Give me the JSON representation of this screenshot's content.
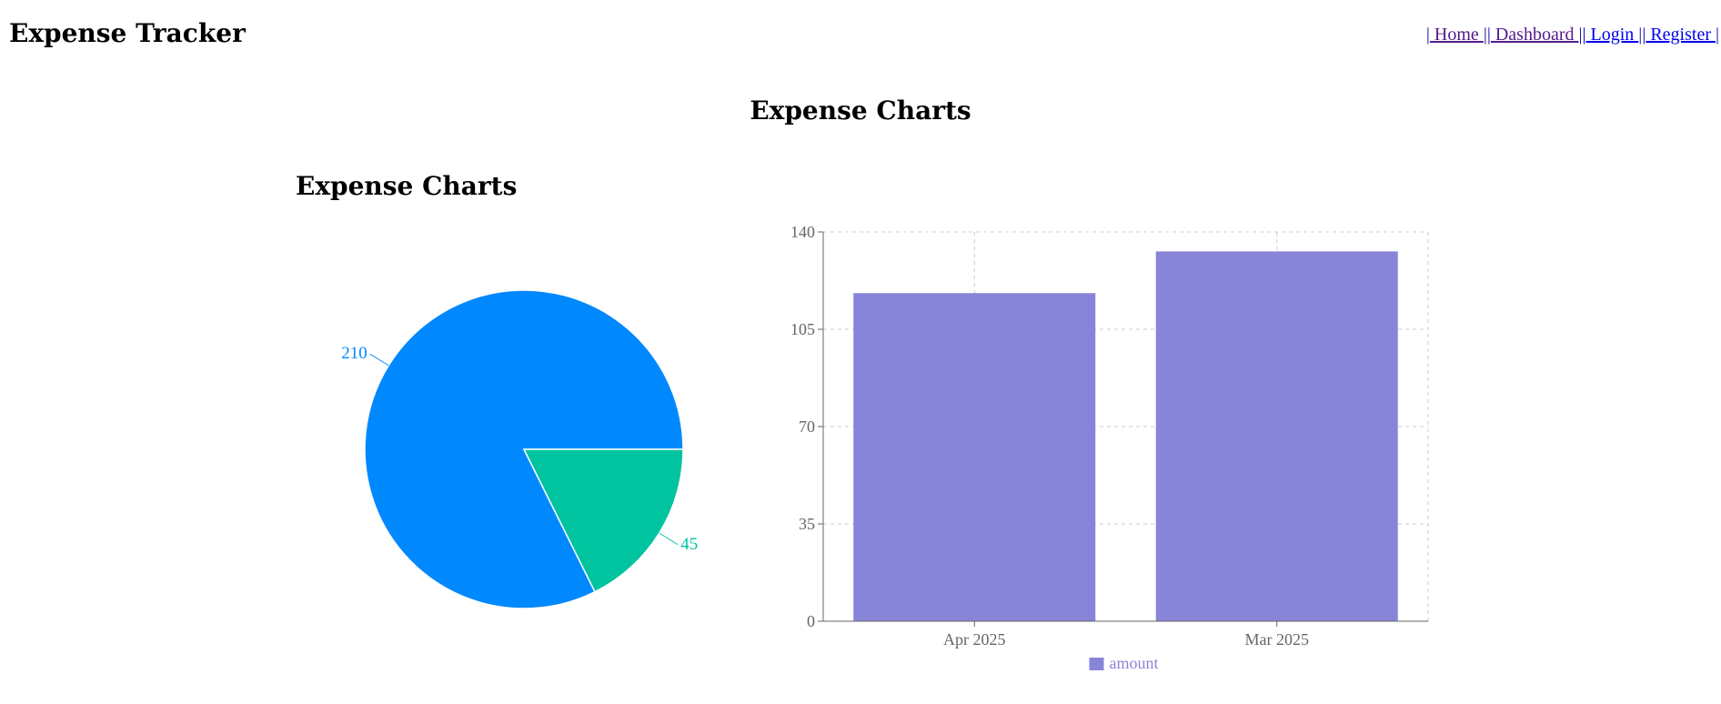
{
  "header": {
    "app_title": "Expense Tracker",
    "nav": [
      {
        "label": " Home ",
        "visited": true
      },
      {
        "label": " Dashboard ",
        "visited": true
      },
      {
        "label": " Login ",
        "visited": false
      },
      {
        "label": " Register ",
        "visited": false
      }
    ],
    "separator": "|"
  },
  "main": {
    "page_heading": "Expense Charts",
    "section_heading": "Expense Charts"
  },
  "chart_data": [
    {
      "type": "pie",
      "slices": [
        {
          "value": 210,
          "color": "#0088FE"
        },
        {
          "value": 45,
          "color": "#00C49F"
        }
      ]
    },
    {
      "type": "bar",
      "categories": [
        "Apr 2025",
        "Mar 2025"
      ],
      "series": [
        {
          "name": "amount",
          "values": [
            118,
            133
          ],
          "color": "#8884d8"
        }
      ],
      "ylim": [
        0,
        140
      ],
      "yticks": [
        0,
        35,
        70,
        105,
        140
      ],
      "grid": true,
      "legend": "bottom-center"
    }
  ]
}
